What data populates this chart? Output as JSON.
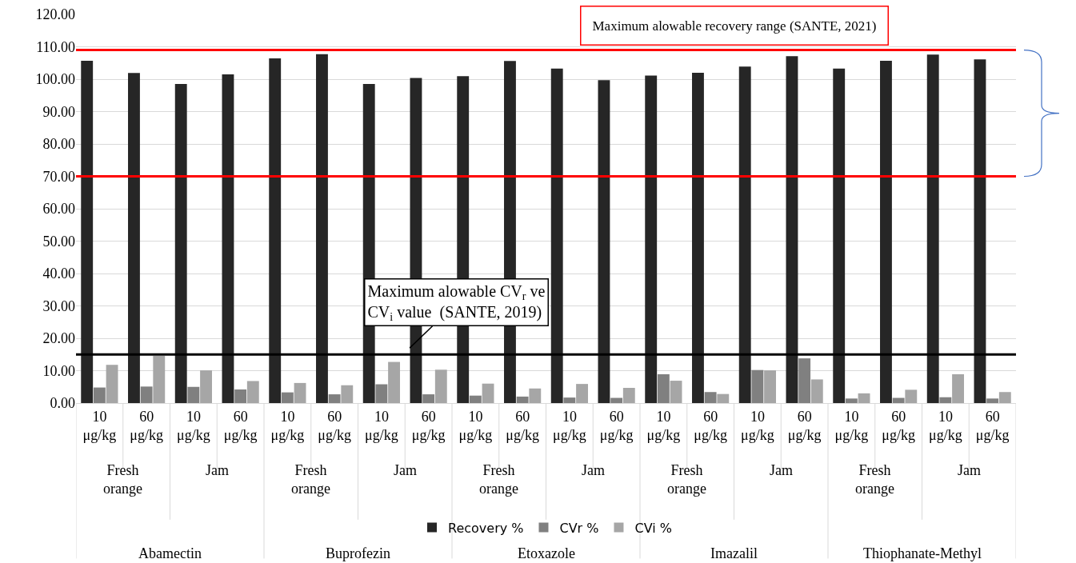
{
  "chart_data": {
    "type": "bar",
    "categories": [
      "10 μg/kg",
      "60 μg/kg",
      "10 μg/kg",
      "60 μg/kg",
      "10 μg/kg",
      "60 μg/kg",
      "10 μg/kg",
      "60 μg/kg",
      "10 μg/kg",
      "60 μg/kg",
      "10 μg/kg",
      "60 μg/kg",
      "10 μg/kg",
      "60 μg/kg",
      "10 μg/kg",
      "60 μg/kg",
      "10 μg/kg",
      "60 μg/kg",
      "10 μg/kg",
      "60 μg/kg"
    ],
    "series": [
      {
        "name": "Recovery %",
        "color": "#262626",
        "values": [
          105.7,
          101.9,
          98.5,
          101.5,
          106.4,
          107.7,
          98.5,
          100.4,
          100.9,
          105.6,
          103.3,
          99.7,
          101.1,
          102.0,
          103.9,
          107.1,
          103.3,
          105.7,
          107.6,
          106.1
        ]
      },
      {
        "name": "CVr %",
        "color": "#808080",
        "values": [
          4.8,
          5.1,
          5.0,
          4.2,
          3.3,
          2.7,
          5.8,
          2.7,
          2.3,
          2.0,
          1.7,
          1.6,
          8.9,
          3.4,
          10.2,
          13.8,
          1.4,
          1.6,
          1.8,
          1.4
        ]
      },
      {
        "name": "CVi %",
        "color": "#a6a6a6",
        "values": [
          11.8,
          14.6,
          10.1,
          6.8,
          6.2,
          5.5,
          12.7,
          10.3,
          6.0,
          4.5,
          5.9,
          4.7,
          6.9,
          2.8,
          10.1,
          7.3,
          3.0,
          4.1,
          8.9,
          3.4
        ]
      }
    ],
    "ylim": [
      0,
      120
    ],
    "yticks": [
      {
        "value": 0,
        "label": "0.00"
      },
      {
        "value": 10,
        "label": "10.00"
      },
      {
        "value": 20,
        "label": "20.00"
      },
      {
        "value": 30,
        "label": "30.00"
      },
      {
        "value": 40,
        "label": "40.00"
      },
      {
        "value": 50,
        "label": "50.00"
      },
      {
        "value": 60,
        "label": "60.00"
      },
      {
        "value": 70,
        "label": "70.00"
      },
      {
        "value": 80,
        "label": "80.00"
      },
      {
        "value": 90,
        "label": "90.00"
      },
      {
        "value": 100,
        "label": "100.00"
      },
      {
        "value": 110,
        "label": "110.00"
      },
      {
        "value": 120,
        "label": "120.00"
      }
    ],
    "ref_lines": [
      {
        "axis": "y",
        "value": 109,
        "color": "#ff0000"
      },
      {
        "axis": "y",
        "value": 70,
        "color": "#ff0000"
      },
      {
        "axis": "y",
        "value": 15,
        "color": "#000000"
      }
    ],
    "annotations": [
      "Maximum alowable recovery range (SANTE, 2021)",
      "Maximum alowable CV$_{r}$ ve CV$_{i}$ value  (SANTE, 2019)",
      "Fresh orange",
      "Jam",
      "Fresh orange",
      "Jam",
      "Fresh orange",
      "Jam",
      "Fresh orange",
      "Jam",
      "Fresh orange",
      "Jam",
      "Abamectin",
      "Buprofezin",
      "Etoxazole",
      "Imazalil",
      "Thiophanate-Methyl"
    ],
    "grid": "y",
    "legend": "bottom"
  }
}
